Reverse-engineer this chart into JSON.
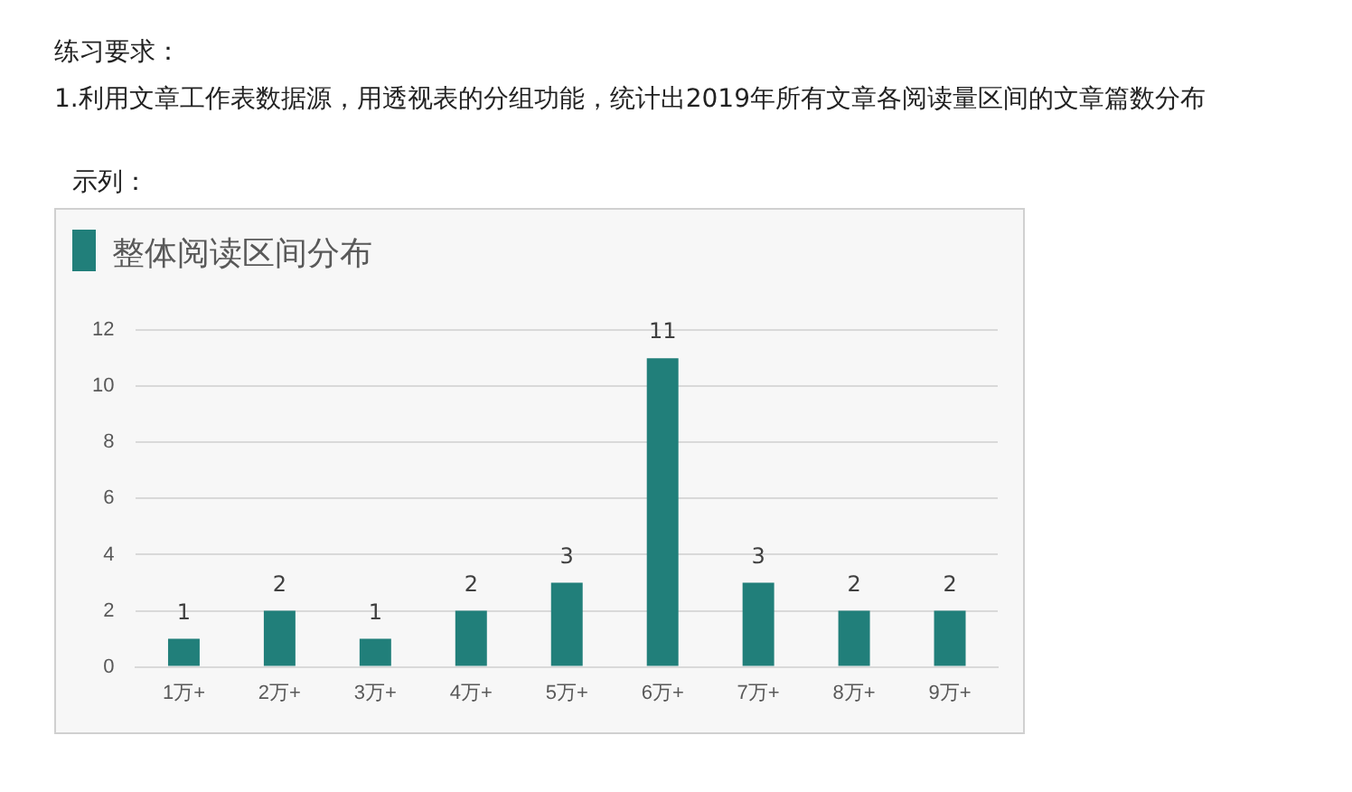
{
  "chart_data": {
    "type": "bar",
    "title": "整体阅读区间分布",
    "annotations": [
      "练习要求：",
      "1.利用文章工作表数据源，用透视表的分组功能，统计出2019年所有文章各阅读量区间的文章篇数分布",
      "示列："
    ],
    "categories": [
      "1万+",
      "2万+",
      "3万+",
      "4万+",
      "5万+",
      "6万+",
      "7万+",
      "8万+",
      "9万+"
    ],
    "values": [
      1,
      2,
      1,
      2,
      3,
      11,
      3,
      2,
      2
    ],
    "color": "#217f7a",
    "ylim": [
      0,
      12
    ],
    "yticks": [
      0,
      2,
      4,
      6,
      8,
      10,
      12
    ],
    "grid": "y",
    "data_labels": true,
    "legend": false
  }
}
